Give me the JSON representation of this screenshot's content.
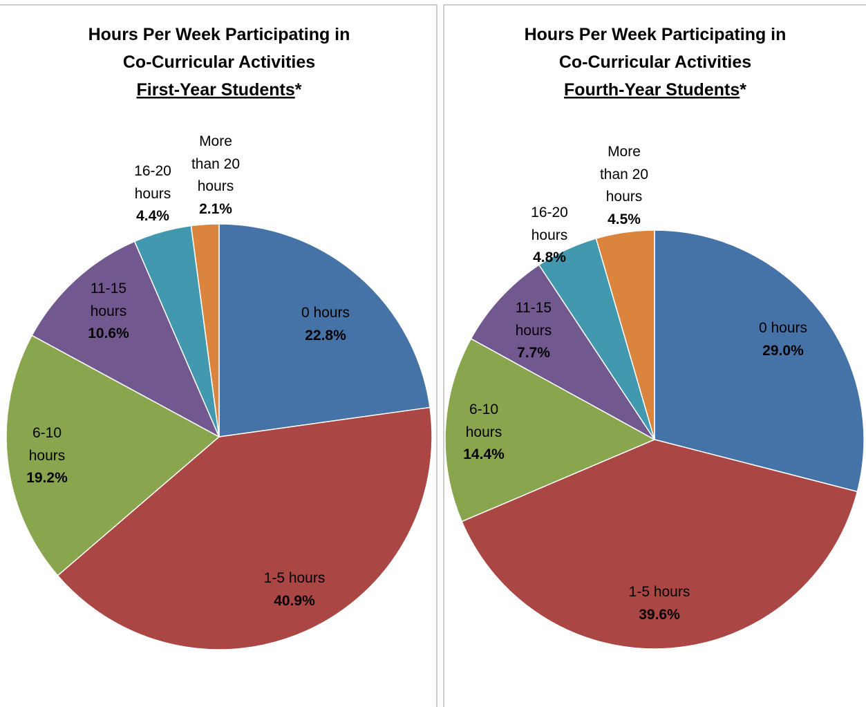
{
  "chart_data": [
    {
      "type": "pie",
      "title": [
        "Hours Per Week Participating in",
        "Co-Curricular Activities"
      ],
      "subtitle": "First-Year Students",
      "subtitle_mark": "*",
      "categories": [
        "0 hours",
        "1-5 hours",
        "6-10 hours",
        "11-15 hours",
        "16-20 hours",
        "More than 20 hours"
      ],
      "values": [
        22.8,
        40.9,
        19.2,
        10.6,
        4.4,
        2.1
      ],
      "value_labels": [
        "22.8%",
        "40.9%",
        "19.2%",
        "10.6%",
        "4.4%",
        "2.1%"
      ],
      "colors": [
        "#4572a7",
        "#aa4643",
        "#89a54e",
        "#71588f",
        "#4198af",
        "#db843d"
      ]
    },
    {
      "type": "pie",
      "title": [
        "Hours Per Week Participating in",
        "Co-Curricular Activities"
      ],
      "subtitle": "Fourth-Year Students",
      "subtitle_mark": "*",
      "categories": [
        "0 hours",
        "1-5 hours",
        "6-10 hours",
        "11-15 hours",
        "16-20 hours",
        "More than 20 hours"
      ],
      "values": [
        29.0,
        39.6,
        14.4,
        7.7,
        4.8,
        4.5
      ],
      "value_labels": [
        "29.0%",
        "39.6%",
        "14.4%",
        "7.7%",
        "4.8%",
        "4.5%"
      ],
      "colors": [
        "#4572a7",
        "#aa4643",
        "#89a54e",
        "#71588f",
        "#4198af",
        "#db843d"
      ]
    }
  ]
}
